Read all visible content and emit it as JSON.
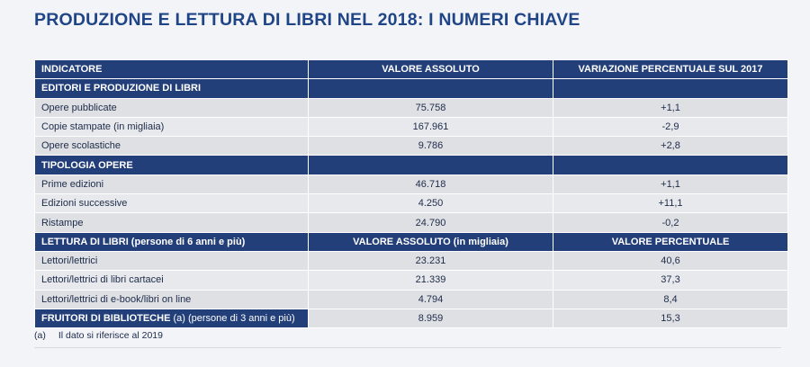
{
  "title": "PRODUZIONE E LETTURA DI LIBRI NEL 2018: I NUMERI CHIAVE",
  "table": {
    "header": [
      "INDICATORE",
      "VALORE ASSOLUTO",
      "VARIAZIONE PERCENTUALE SUL 2017"
    ],
    "section1": {
      "label": "EDITORI E PRODUZIONE DI LIBRI",
      "rows": [
        [
          "Opere pubblicate",
          "75.758",
          "+1,1"
        ],
        [
          "Copie stampate (in migliaia)",
          "167.961",
          "-2,9"
        ],
        [
          "Opere scolastiche",
          "9.786",
          "+2,8"
        ]
      ]
    },
    "section2": {
      "label": "TIPOLOGIA OPERE",
      "rows": [
        [
          "Prime edizioni",
          "46.718",
          "+1,1"
        ],
        [
          "Edizioni successive",
          "4.250",
          "+11,1"
        ],
        [
          "Ristampe",
          "24.790",
          "-0,2"
        ]
      ]
    },
    "section3": {
      "label": "LETTURA DI LIBRI (persone di 6 anni e più)",
      "col2": "VALORE ASSOLUTO (in migliaia)",
      "col3": "VALORE PERCENTUALE",
      "rows": [
        [
          "Lettori/lettrici",
          "23.231",
          "40,6"
        ],
        [
          "Lettori/lettrici di libri cartacei",
          "21.339",
          "37,3"
        ],
        [
          "Lettori/lettrici di e-book/libri on line",
          "4.794",
          "8,4"
        ]
      ]
    },
    "last_row": {
      "label_bold": "FRUITORI DI BIBLIOTECHE",
      "label_rest": " (a) (persone di 3 anni e più)",
      "value": "8.959",
      "percent": "15,3"
    }
  },
  "footnote": {
    "mark": "(a)",
    "text": "Il dato si riferisce al 2019"
  }
}
